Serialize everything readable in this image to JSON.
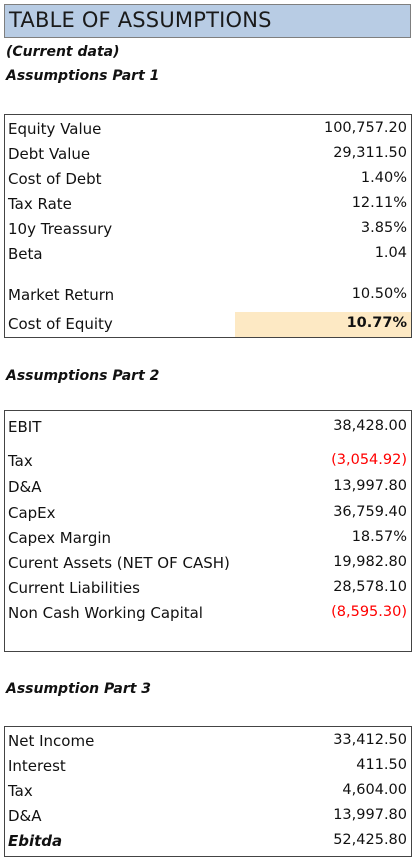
{
  "header": {
    "title": "TABLE OF ASSUMPTIONS",
    "note": "(Current data)"
  },
  "part1": {
    "title": "Assumptions Part 1",
    "rows": [
      {
        "label": "Equity Value",
        "value": "100,757.20"
      },
      {
        "label": "Debt Value",
        "value": "29,311.50"
      },
      {
        "label": "Cost of Debt",
        "value": "1.40%"
      },
      {
        "label": "Tax Rate",
        "value": "12.11%"
      },
      {
        "label": "10y Treassury",
        "value": "3.85%"
      },
      {
        "label": "Beta",
        "value": "1.04"
      },
      {
        "label": "Market Return",
        "value": "10.50%"
      },
      {
        "label": "Cost of Equity",
        "value": "10.77%"
      }
    ]
  },
  "part2": {
    "title": "Assumptions Part 2",
    "rows": [
      {
        "label": "EBIT",
        "value": "38,428.00"
      },
      {
        "label": "Tax",
        "value": "(3,054.92)"
      },
      {
        "label": "D&A",
        "value": "13,997.80"
      },
      {
        "label": "CapEx",
        "value": "36,759.40"
      },
      {
        "label": "Capex Margin",
        "value": "18.57%"
      },
      {
        "label": "Curent Assets (NET OF CASH)",
        "value": "19,982.80"
      },
      {
        "label": "Current Liabilities",
        "value": "28,578.10"
      },
      {
        "label": "Non Cash Working Capital",
        "value": "(8,595.30)"
      }
    ]
  },
  "part3": {
    "title": "Assumption Part 3",
    "rows": [
      {
        "label": "Net Income",
        "value": "33,412.50"
      },
      {
        "label": "Interest",
        "value": "411.50"
      },
      {
        "label": "Tax",
        "value": "4,604.00"
      },
      {
        "label": "D&A",
        "value": "13,997.80"
      },
      {
        "label": "Ebitda",
        "value": "52,425.80"
      }
    ]
  },
  "colors": {
    "title_bg": "#b8cce4",
    "highlight_bg": "#fde9c4",
    "negative": "#ff0000"
  }
}
